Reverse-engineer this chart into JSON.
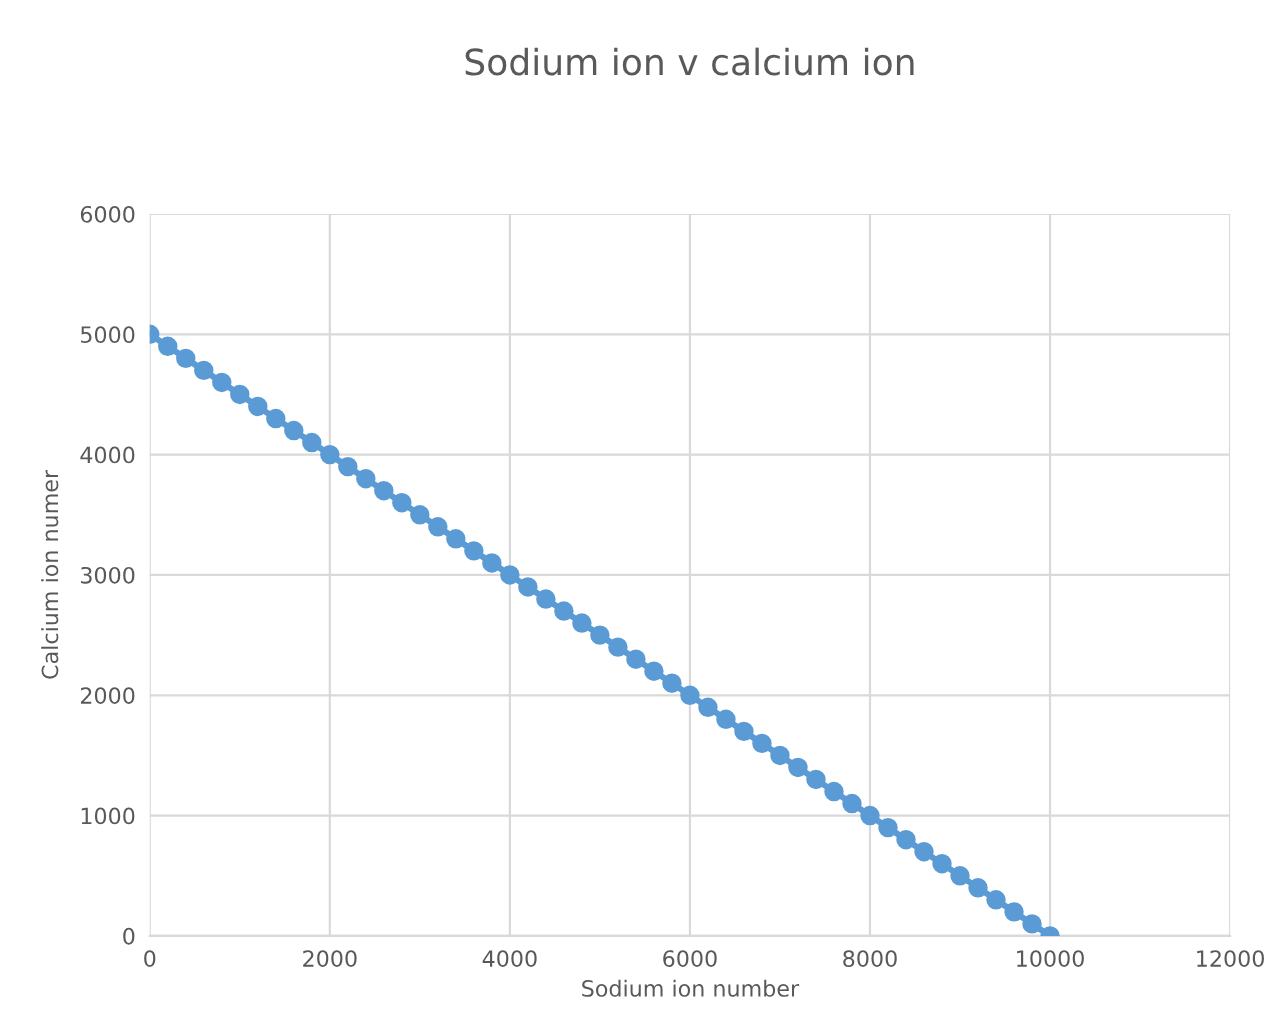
{
  "chart_data": {
    "type": "line",
    "title": "Sodium ion v calcium ion",
    "xlabel": "Sodium ion number",
    "ylabel": "Calcium ion numer",
    "x": [
      0,
      200,
      400,
      600,
      800,
      1000,
      1200,
      1400,
      1600,
      1800,
      2000,
      2200,
      2400,
      2600,
      2800,
      3000,
      3200,
      3400,
      3600,
      3800,
      4000,
      4200,
      4400,
      4600,
      4800,
      5000,
      5200,
      5400,
      5600,
      5800,
      6000,
      6200,
      6400,
      6600,
      6800,
      7000,
      7200,
      7400,
      7600,
      7800,
      8000,
      8200,
      8400,
      8600,
      8800,
      9000,
      9200,
      9400,
      9600,
      9800,
      10000
    ],
    "series": [
      {
        "color": "#5b9bd5",
        "values": [
          5000,
          4900,
          4800,
          4700,
          4600,
          4500,
          4400,
          4300,
          4200,
          4100,
          4000,
          3900,
          3800,
          3700,
          3600,
          3500,
          3400,
          3300,
          3200,
          3100,
          3000,
          2900,
          2800,
          2700,
          2600,
          2500,
          2400,
          2300,
          2200,
          2100,
          2000,
          1900,
          1800,
          1700,
          1600,
          1500,
          1400,
          1300,
          1200,
          1100,
          1000,
          900,
          800,
          700,
          600,
          500,
          400,
          300,
          200,
          100,
          0
        ]
      }
    ],
    "xlim": [
      0,
      12000
    ],
    "xticks": [
      0,
      2000,
      4000,
      6000,
      8000,
      10000,
      12000
    ],
    "ylim": [
      0,
      6000
    ],
    "yticks": [
      0,
      1000,
      2000,
      3000,
      4000,
      5000,
      6000
    ],
    "grid": true,
    "marker": "circle",
    "line_style": "solid"
  }
}
